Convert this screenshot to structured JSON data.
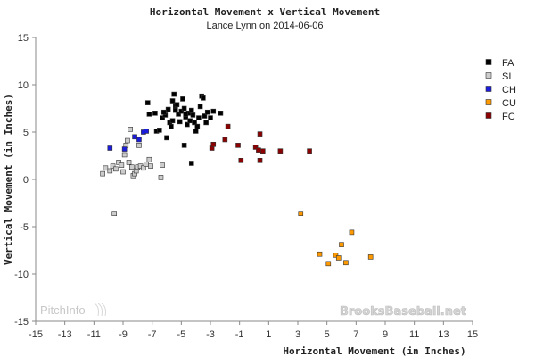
{
  "chart_data": {
    "type": "scatter",
    "title": "Horizontal Movement x Vertical Movement",
    "subtitle": "Lance Lynn on 2014-06-06",
    "xlabel": "Horizontal Movement (in Inches)",
    "ylabel": "Vertical Movement (in Inches)",
    "xlim": [
      -15,
      15
    ],
    "ylim": [
      -15,
      15
    ],
    "xticks": [
      "-15",
      "-13",
      "-11",
      "-9",
      "-7",
      "-5",
      "-3",
      "-1",
      "1",
      "3",
      "5",
      "7",
      "9",
      "11",
      "13",
      "15"
    ],
    "yticks": [
      "15",
      "10",
      "5",
      "0",
      "-5",
      "-10",
      "-15"
    ],
    "grid": false,
    "legend_position": "right",
    "series": [
      {
        "name": "FA",
        "color": "#000000",
        "points": [
          [
            -7.3,
            8.1
          ],
          [
            -7.2,
            6.9
          ],
          [
            -6.8,
            7.0
          ],
          [
            -6.7,
            5.1
          ],
          [
            -6.5,
            5.2
          ],
          [
            -6.3,
            6.5
          ],
          [
            -6.1,
            6.8
          ],
          [
            -6.0,
            4.4
          ],
          [
            -5.9,
            7.4
          ],
          [
            -5.8,
            6.0
          ],
          [
            -5.7,
            5.6
          ],
          [
            -5.6,
            8.3
          ],
          [
            -5.5,
            9.0
          ],
          [
            -5.4,
            7.8
          ],
          [
            -5.3,
            7.9
          ],
          [
            -5.2,
            6.9
          ],
          [
            -5.1,
            6.1
          ],
          [
            -5.0,
            7.2
          ],
          [
            -4.9,
            8.5
          ],
          [
            -4.8,
            7.5
          ],
          [
            -4.7,
            6.6
          ],
          [
            -4.6,
            5.8
          ],
          [
            -4.5,
            7.0
          ],
          [
            -4.4,
            6.2
          ],
          [
            -4.3,
            7.3
          ],
          [
            -4.2,
            6.8
          ],
          [
            -4.1,
            6.0
          ],
          [
            -4.0,
            5.1
          ],
          [
            -3.9,
            5.6
          ],
          [
            -3.8,
            6.5
          ],
          [
            -3.7,
            7.7
          ],
          [
            -3.6,
            8.8
          ],
          [
            -3.5,
            8.6
          ],
          [
            -3.4,
            6.7
          ],
          [
            -3.3,
            6.0
          ],
          [
            -3.2,
            7.1
          ],
          [
            -3.0,
            6.5
          ],
          [
            -2.8,
            7.2
          ],
          [
            -2.3,
            7.0
          ],
          [
            -4.8,
            3.6
          ],
          [
            -4.3,
            1.7
          ],
          [
            -6.2,
            7.1
          ],
          [
            -5.6,
            6.2
          ],
          [
            -4.7,
            6.9
          ],
          [
            -5.4,
            7.3
          ]
        ]
      },
      {
        "name": "SI",
        "color": "#cccccc",
        "points": [
          [
            -10.4,
            0.6
          ],
          [
            -10.2,
            1.2
          ],
          [
            -9.9,
            0.9
          ],
          [
            -9.7,
            1.4
          ],
          [
            -9.5,
            1.1
          ],
          [
            -9.3,
            1.8
          ],
          [
            -9.1,
            1.5
          ],
          [
            -9.0,
            0.8
          ],
          [
            -8.9,
            2.6
          ],
          [
            -8.8,
            3.6
          ],
          [
            -8.7,
            4.1
          ],
          [
            -8.6,
            1.8
          ],
          [
            -8.5,
            5.3
          ],
          [
            -8.4,
            1.3
          ],
          [
            -8.3,
            0.4
          ],
          [
            -8.2,
            0.6
          ],
          [
            -8.1,
            0.9
          ],
          [
            -8.0,
            1.3
          ],
          [
            -7.9,
            3.6
          ],
          [
            -7.8,
            1.4
          ],
          [
            -7.6,
            1.2
          ],
          [
            -7.4,
            1.6
          ],
          [
            -7.2,
            2.1
          ],
          [
            -7.1,
            1.4
          ],
          [
            -6.3,
            1.5
          ],
          [
            -6.4,
            0.2
          ],
          [
            -9.6,
            -3.6
          ]
        ]
      },
      {
        "name": "CH",
        "color": "#1c1cdc",
        "points": [
          [
            -9.9,
            3.3
          ],
          [
            -8.9,
            3.2
          ],
          [
            -8.2,
            4.5
          ],
          [
            -7.9,
            4.2
          ],
          [
            -7.6,
            5.0
          ],
          [
            -7.4,
            5.1
          ]
        ]
      },
      {
        "name": "CU",
        "color": "#ff9900",
        "points": [
          [
            3.2,
            -3.6
          ],
          [
            4.5,
            -7.9
          ],
          [
            5.1,
            -8.9
          ],
          [
            5.6,
            -8.0
          ],
          [
            5.8,
            -8.3
          ],
          [
            6.0,
            -6.9
          ],
          [
            6.3,
            -8.8
          ],
          [
            6.7,
            -5.6
          ],
          [
            8.0,
            -8.2
          ]
        ]
      },
      {
        "name": "FC",
        "color": "#8b0000",
        "points": [
          [
            -1.8,
            5.6
          ],
          [
            -2.0,
            4.2
          ],
          [
            -2.9,
            3.3
          ],
          [
            -2.8,
            3.7
          ],
          [
            -1.1,
            3.6
          ],
          [
            -0.9,
            2.0
          ],
          [
            0.1,
            3.4
          ],
          [
            0.3,
            3.1
          ],
          [
            0.4,
            2.0
          ],
          [
            0.4,
            4.8
          ],
          [
            0.6,
            3.0
          ],
          [
            1.8,
            3.0
          ],
          [
            3.8,
            3.0
          ]
        ]
      }
    ]
  },
  "watermarks": {
    "left": "PitchInfo",
    "right": "BrooksBaseball.net"
  }
}
